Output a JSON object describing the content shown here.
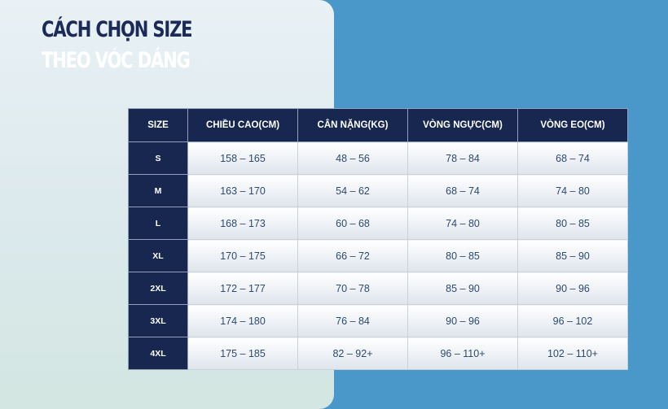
{
  "title": {
    "line1": "CÁCH CHỌN SIZE",
    "line2": "THEO VÓC DÁNG"
  },
  "table": {
    "headers": [
      "SIZE",
      "CHIỀU CAO(CM)",
      "CÂN NẶNG(KG)",
      "VÒNG NGỰC(CM)",
      "VÒNG EO(CM)"
    ],
    "rows": [
      {
        "size": "S",
        "height": "158 – 165",
        "weight": "48 – 56",
        "chest": "78 – 84",
        "waist": "68 – 74"
      },
      {
        "size": "M",
        "height": "163 – 170",
        "weight": "54 – 62",
        "chest": "68 – 74",
        "waist": "74 – 80"
      },
      {
        "size": "L",
        "height": "168 – 173",
        "weight": "60 – 68",
        "chest": "74 – 80",
        "waist": "80 – 85"
      },
      {
        "size": "XL",
        "height": "170 – 175",
        "weight": "66 – 72",
        "chest": "80 – 85",
        "waist": "85 – 90"
      },
      {
        "size": "2XL",
        "height": "172 – 177",
        "weight": "70 – 78",
        "chest": "85 – 90",
        "waist": "90 – 96"
      },
      {
        "size": "3XL",
        "height": "174 – 180",
        "weight": "76 – 84",
        "chest": "90 – 96",
        "waist": "96 – 102"
      },
      {
        "size": "4XL",
        "height": "175 – 185",
        "weight": "82 – 92+",
        "chest": "96 – 110+",
        "waist": "102 – 110+"
      }
    ]
  },
  "colors": {
    "navy": "#17274f",
    "background_blue": "#4a97c9",
    "cell_text": "#2c4a70"
  }
}
